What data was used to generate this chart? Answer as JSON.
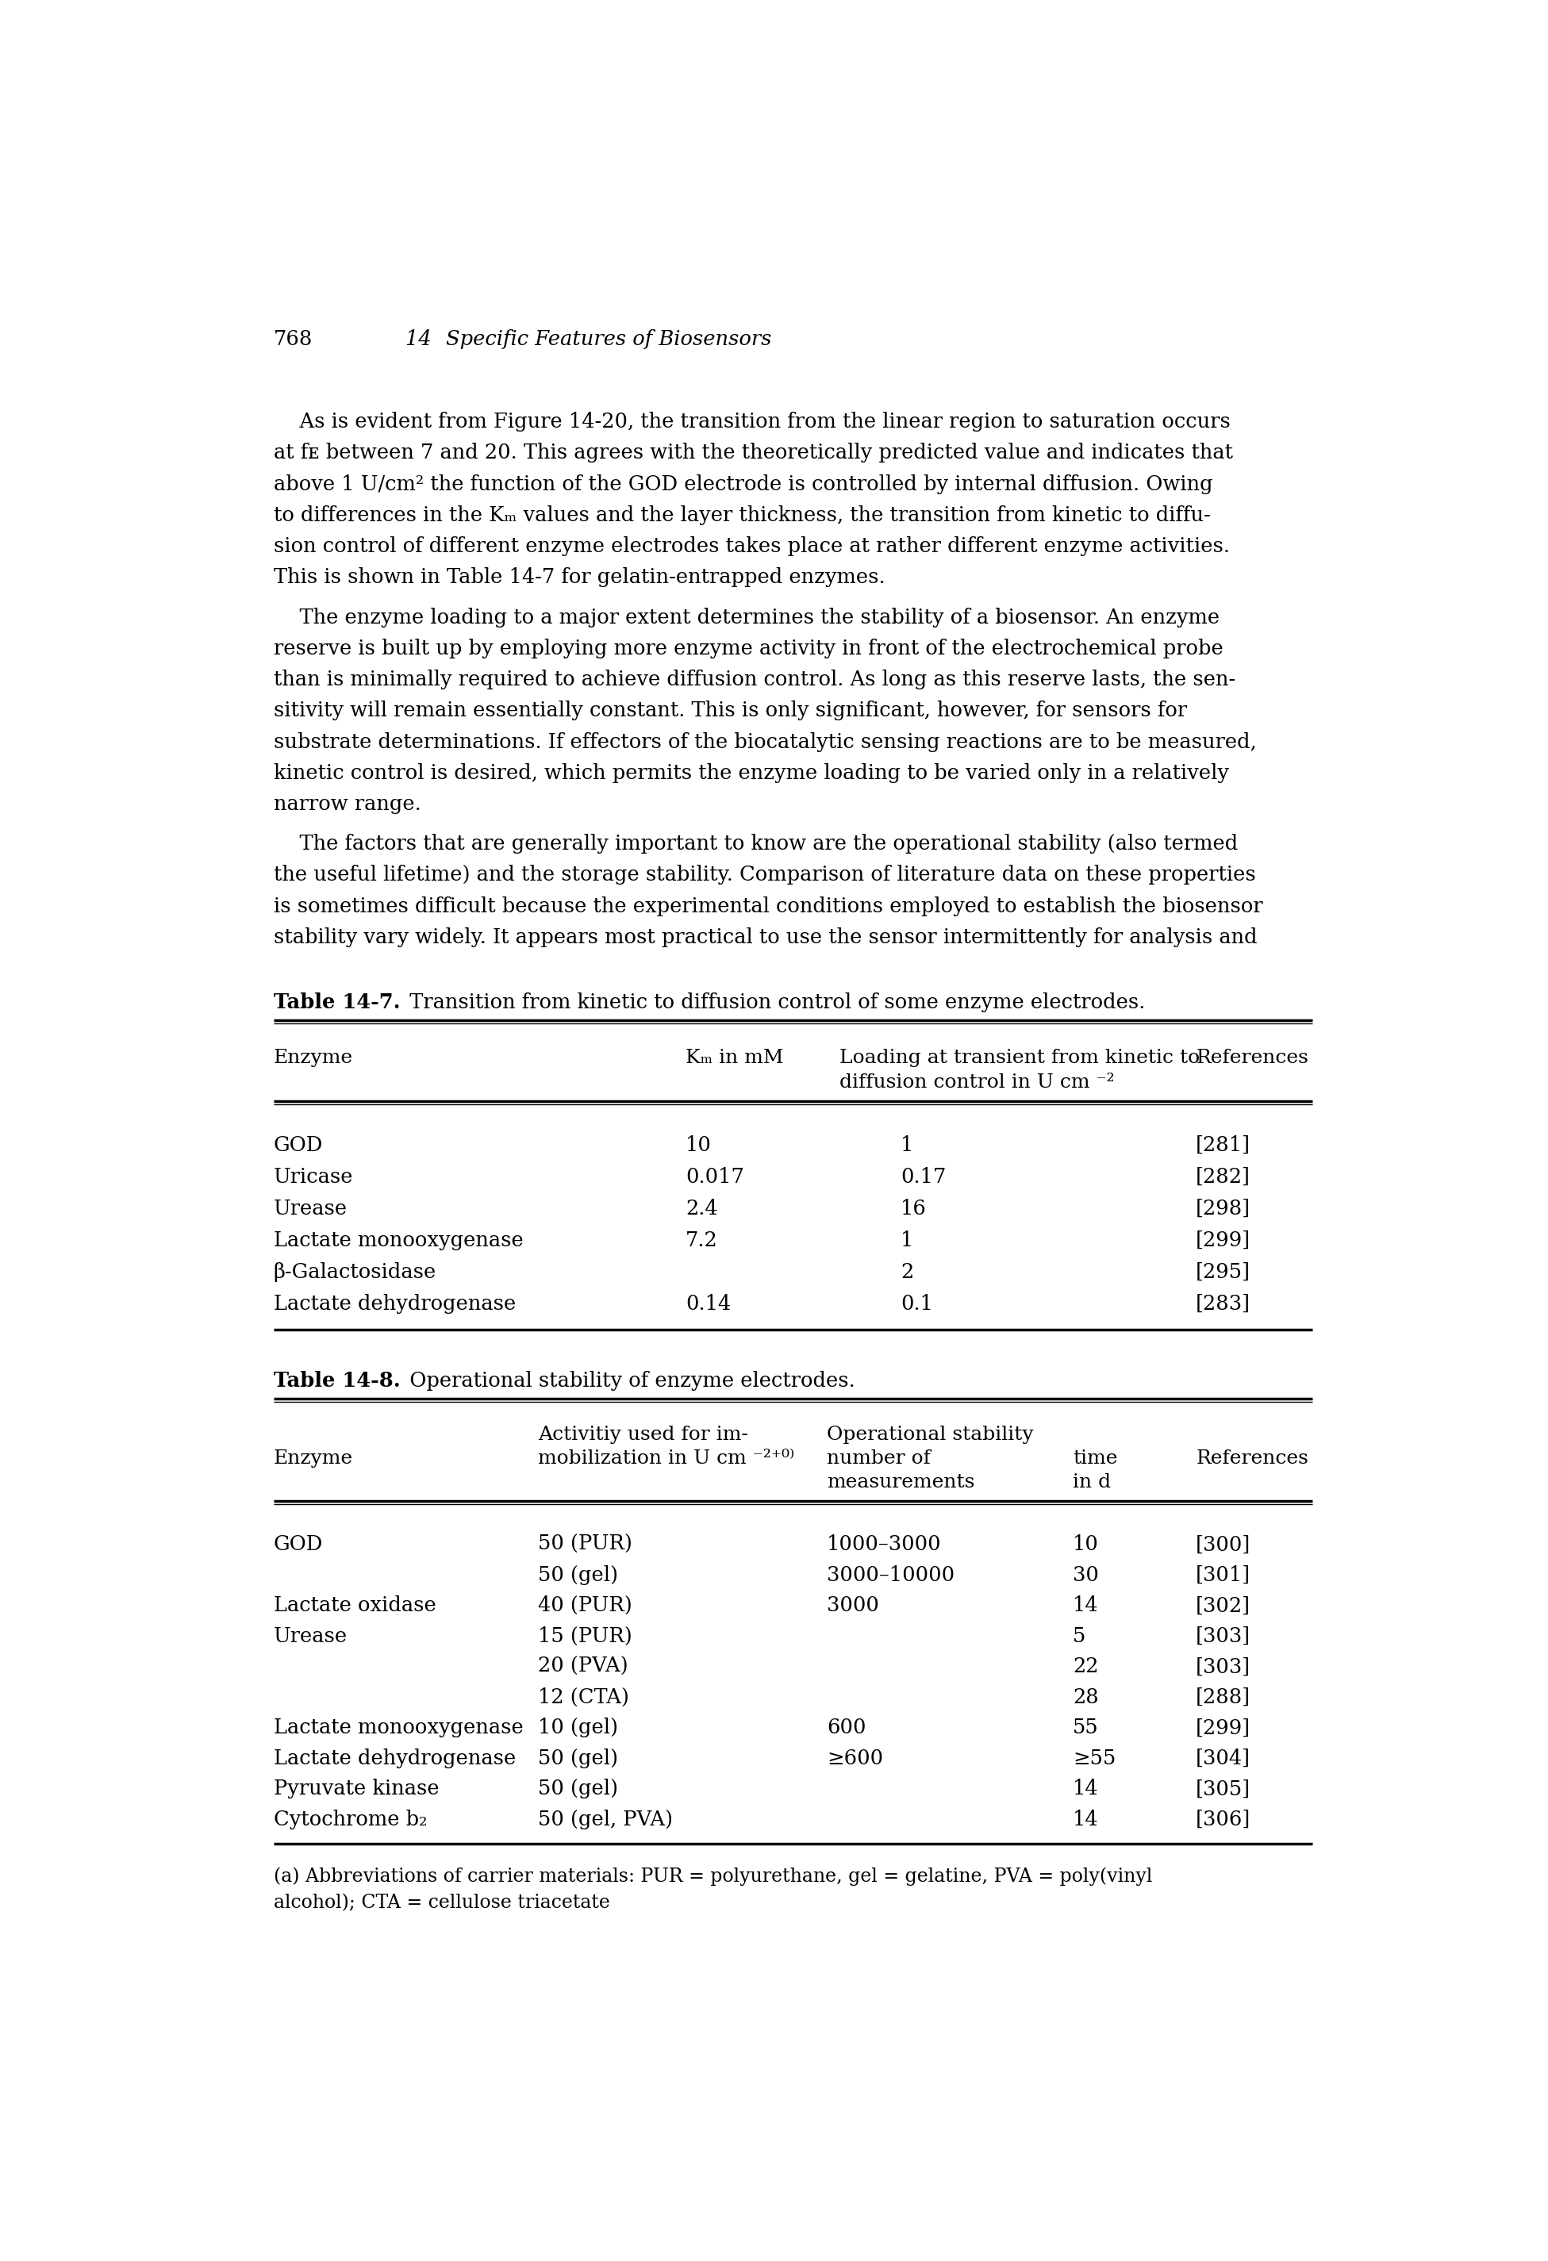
{
  "page_number": "768",
  "header_number": "14",
  "header_title": "Specific Features of Biosensors",
  "paragraph1_lines": [
    "    As is evident from Figure 14-20, the transition from the linear region to saturation occurs",
    "at fᴇ between 7 and 20. This agrees with the theoretically predicted value and indicates that",
    "above 1 U/cm² the function of the GOD electrode is controlled by internal diffusion. Owing",
    "to differences in the Kₘ values and the layer thickness, the transition from kinetic to diffu-",
    "sion control of different enzyme electrodes takes place at rather different enzyme activities.",
    "This is shown in Table 14-7 for gelatin-entrapped enzymes."
  ],
  "paragraph2_lines": [
    "    The enzyme loading to a major extent determines the stability of a biosensor. An enzyme",
    "reserve is built up by employing more enzyme activity in front of the electrochemical probe",
    "than is minimally required to achieve diffusion control. As long as this reserve lasts, the sen-",
    "sitivity will remain essentially constant. This is only significant, however, for sensors for",
    "substrate determinations. If effectors of the biocatalytic sensing reactions are to be measured,",
    "kinetic control is desired, which permits the enzyme loading to be varied only in a relatively",
    "narrow range."
  ],
  "paragraph3_lines": [
    "    The factors that are generally important to know are the operational stability (also termed",
    "the useful lifetime) and the storage stability. Comparison of literature data on these properties",
    "is sometimes difficult because the experimental conditions employed to establish the biosensor",
    "stability vary widely. It appears most practical to use the sensor intermittently for analysis and"
  ],
  "table1_bold": "Table 14-7.",
  "table1_rest": "  Transition from kinetic to diffusion control of some enzyme electrodes.",
  "table1_col1_header": "Enzyme",
  "table1_col2_header": "Kₘ in mM",
  "table1_col3_header_line1": "Loading at transient from kinetic to",
  "table1_col3_header_line2": "diffusion control in U cm ⁻²",
  "table1_col4_header": "References",
  "table1_rows": [
    [
      "GOD",
      "10",
      "1",
      "[281]"
    ],
    [
      "Uricase",
      "0.017",
      "0.17",
      "[282]"
    ],
    [
      "Urease",
      "2.4",
      "16",
      "[298]"
    ],
    [
      "Lactate monooxygenase",
      "7.2",
      "1",
      "[299]"
    ],
    [
      "β-Galactosidase",
      "",
      "2",
      "[295]"
    ],
    [
      "Lactate dehydrogenase",
      "0.14",
      "0.1",
      "[283]"
    ]
  ],
  "table2_bold": "Table 14-8.",
  "table2_rest": "  Operational stability of enzyme electrodes.",
  "table2_col2_h1": "Activitiy used for im-",
  "table2_col2_h2": "mobilization in U cm ⁻²⁺⁰⁾",
  "table2_col3_h1": "Operational stability",
  "table2_col3_h2": "number of",
  "table2_col3_h3": "measurements",
  "table2_col4_h1": "time",
  "table2_col4_h2": "in d",
  "table2_col5_h": "References",
  "table2_col1_h": "Enzyme",
  "table2_rows": [
    [
      "GOD",
      "50 (PUR)",
      "1000–3000",
      "10",
      "[300]"
    ],
    [
      "",
      "50 (gel)",
      "3000–10000",
      "30",
      "[301]"
    ],
    [
      "Lactate oxidase",
      "40 (PUR)",
      "3000",
      "14",
      "[302]"
    ],
    [
      "Urease",
      "15 (PUR)",
      "",
      "5",
      "[303]"
    ],
    [
      "",
      "20 (PVA)",
      "",
      "22",
      "[303]"
    ],
    [
      "",
      "12 (CTA)",
      "",
      "28",
      "[288]"
    ],
    [
      "Lactate monooxygenase",
      "10 (gel)",
      "600",
      "55",
      "[299]"
    ],
    [
      "Lactate dehydrogenase",
      "50 (gel)",
      "≥600",
      "≥55",
      "[304]"
    ],
    [
      "Pyruvate kinase",
      "50 (gel)",
      "",
      "14",
      "[305]"
    ],
    [
      "Cytochrome b₂",
      "50 (gel, PVA)",
      "",
      "14",
      "[306]"
    ]
  ],
  "table2_footnote_line1": "(a) Abbreviations of carrier materials: PUR = polyurethane, gel = gelatine, PVA = poly(vinyl",
  "table2_footnote_line2": "alcohol); CTA = cellulose triacetate",
  "bg": "#ffffff"
}
